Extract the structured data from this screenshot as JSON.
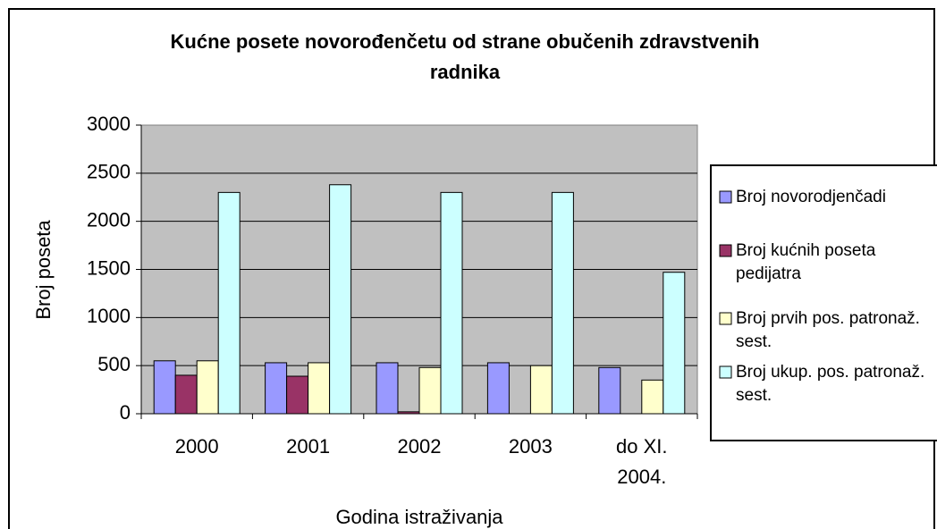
{
  "chart_data": {
    "type": "bar",
    "title": "Kućne posete novorođenčetu od strane obučenih zdravstvenih radnika",
    "x_label": "Godina istraživanja",
    "y_label": "Broj poseta",
    "categories": [
      "2000",
      "2001",
      "2002",
      "2003",
      "do XI. 2004."
    ],
    "series": [
      {
        "name": "Broj novorodjenčadi",
        "color": "#9999ff",
        "values": [
          550,
          530,
          530,
          530,
          480
        ]
      },
      {
        "name": "Broj kućnih poseta pedijatra",
        "color": "#993366",
        "values": [
          400,
          390,
          20,
          null,
          null
        ]
      },
      {
        "name": "Broj prvih pos. patronaž. sest.",
        "color": "#ffffcc",
        "values": [
          550,
          530,
          480,
          500,
          350
        ]
      },
      {
        "name": "Broj ukup. pos. patronaž. sest.",
        "color": "#ccffff",
        "values": [
          2300,
          2380,
          2300,
          2300,
          1470
        ]
      }
    ],
    "ylim": [
      0,
      3000
    ],
    "yticks": [
      0,
      500,
      1000,
      1500,
      2000,
      2500,
      3000
    ],
    "grid": true,
    "legend": "right"
  }
}
